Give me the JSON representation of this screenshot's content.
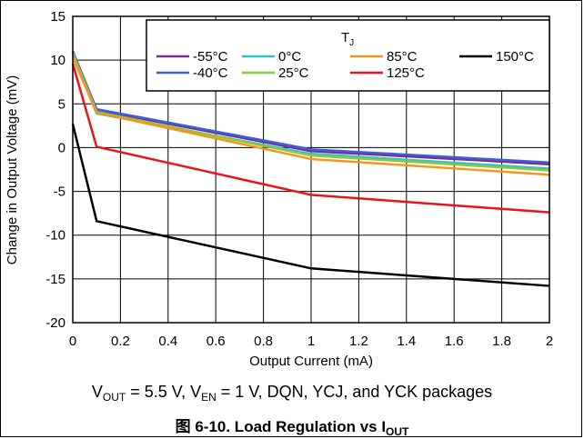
{
  "chart_data": {
    "type": "line",
    "xlabel": "Output Current (mA)",
    "ylabel": "Change in Output Voltage (mV)",
    "xlim": [
      0,
      2
    ],
    "ylim": [
      -20,
      15
    ],
    "xticks": [
      "0",
      "0.2",
      "0.4",
      "0.6",
      "0.8",
      "1",
      "1.2",
      "1.4",
      "1.6",
      "1.8",
      "2"
    ],
    "yticks": [
      "15",
      "10",
      "5",
      "0",
      "-5",
      "-10",
      "-15",
      "-20"
    ],
    "grid": true,
    "legend_position": "top-right",
    "legend_title": "T",
    "legend_title_sub": "J",
    "x": [
      0,
      0.1,
      1,
      2
    ],
    "series": [
      {
        "name": "-55°C",
        "color": "#7b2b8f",
        "values": [
          11.0,
          4.3,
          -0.4,
          -1.9
        ]
      },
      {
        "name": "-40°C",
        "color": "#3b5fe0",
        "values": [
          11.0,
          4.4,
          -0.2,
          -1.7
        ]
      },
      {
        "name": "0°C",
        "color": "#33c4c9",
        "values": [
          10.6,
          3.9,
          -0.7,
          -2.4
        ]
      },
      {
        "name": "25°C",
        "color": "#8cc63f",
        "values": [
          10.8,
          4.1,
          -0.9,
          -2.6
        ]
      },
      {
        "name": "85°C",
        "color": "#f7941d",
        "values": [
          10.3,
          4.0,
          -1.3,
          -3.1
        ]
      },
      {
        "name": "125°C",
        "color": "#e8131b",
        "values": [
          9.6,
          0.1,
          -5.4,
          -7.4
        ]
      },
      {
        "name": "150°C",
        "color": "#000000",
        "values": [
          2.7,
          -8.4,
          -13.8,
          -15.8
        ]
      }
    ]
  },
  "captions": {
    "conditions": {
      "v_out_main": "V",
      "v_out_sub": "OUT",
      "v_out_value": " = 5.5 V, ",
      "v_en_main": "V",
      "v_en_sub": "EN",
      "v_en_value": " = 1 V, DQN, YCJ, and YCK packages"
    },
    "figure": {
      "prefix": "图 6-10. Load Regulation vs I",
      "sub": "OUT"
    }
  }
}
